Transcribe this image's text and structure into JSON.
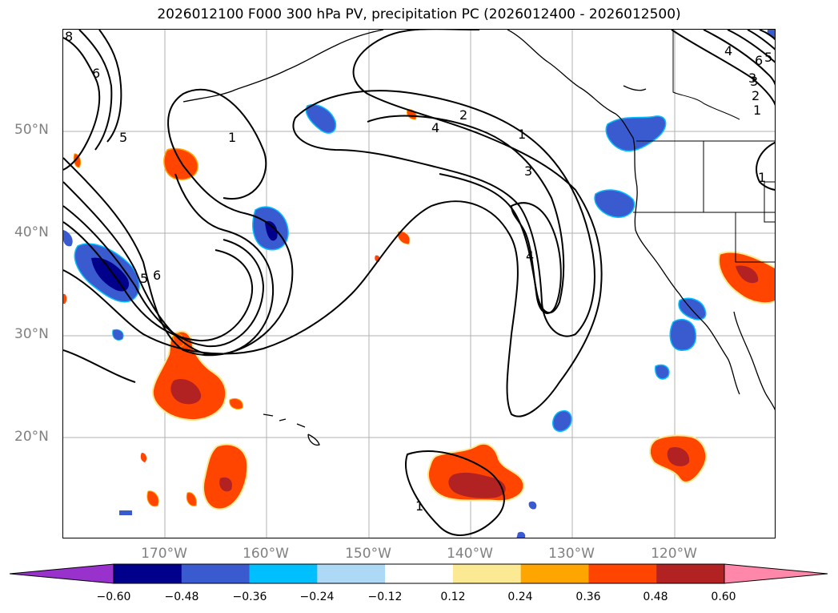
{
  "title": "2026012100 F000 300 hPa PV, precipitation PC (2026012400 - 2026012500)",
  "lat_labels": [
    "50°N",
    "40°N",
    "30°N",
    "20°N"
  ],
  "lon_labels": [
    "170°W",
    "160°W",
    "150°W",
    "140°W",
    "130°W",
    "120°W"
  ],
  "contour_labels": [
    "8",
    "6",
    "5",
    "1",
    "2",
    "4",
    "1",
    "3",
    "4",
    "3",
    "6",
    "5",
    "4",
    "3",
    "2",
    "1",
    "1",
    "1",
    "6",
    "5"
  ],
  "colorbar": {
    "ticks": [
      "−0.60",
      "−0.48",
      "−0.36",
      "−0.24",
      "−0.12",
      "0.12",
      "0.24",
      "0.36",
      "0.48",
      "0.60"
    ],
    "colors": [
      "#9932cc",
      "#00008b",
      "#3a5bd0",
      "#00bfff",
      "#add8f6",
      "#ffffff",
      "#fce993",
      "#ffa500",
      "#ff4500",
      "#b22222",
      "#ff88aa"
    ]
  },
  "colors": {
    "neg_strong": "#00008b",
    "neg_mid": "#3a5bd0",
    "neg_light": "#00bfff",
    "pos_mid": "#ff4500",
    "pos_strong": "#b22222",
    "pos_light": "#ffa500",
    "pos_faint": "#fce993"
  }
}
